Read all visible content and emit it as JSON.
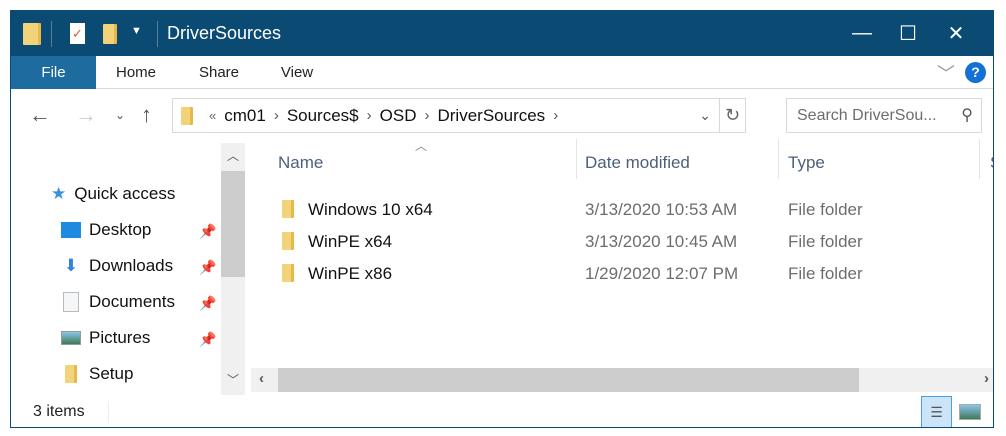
{
  "window": {
    "title": "DriverSources",
    "minimize": "—",
    "maximize": "☐",
    "close": "✕"
  },
  "ribbon": {
    "tabs": [
      "File",
      "Home",
      "Share",
      "View"
    ],
    "expand": "﹀",
    "help": "?"
  },
  "address": {
    "overflow": "«",
    "crumbs": [
      "cm01",
      "Sources$",
      "OSD",
      "DriverSources"
    ],
    "search_placeholder": "Search DriverSou..."
  },
  "navpane": {
    "items": [
      {
        "label": "Quick access",
        "icon": "star-icon",
        "pinned": false
      },
      {
        "label": "Desktop",
        "icon": "desktop-icon",
        "pinned": true
      },
      {
        "label": "Downloads",
        "icon": "download-icon",
        "pinned": true
      },
      {
        "label": "Documents",
        "icon": "documents-icon",
        "pinned": true
      },
      {
        "label": "Pictures",
        "icon": "pictures-icon",
        "pinned": true
      },
      {
        "label": "Setup",
        "icon": "folder-icon",
        "pinned": false
      }
    ]
  },
  "columns": {
    "name": "Name",
    "date": "Date modified",
    "type": "Type",
    "size": "S"
  },
  "files": [
    {
      "name": "Windows 10 x64",
      "date": "3/13/2020 10:53 AM",
      "type": "File folder"
    },
    {
      "name": "WinPE x64",
      "date": "3/13/2020 10:45 AM",
      "type": "File folder"
    },
    {
      "name": "WinPE x86",
      "date": "1/29/2020 12:07 PM",
      "type": "File folder"
    }
  ],
  "status": {
    "count": "3 items"
  },
  "colors": {
    "titlebar": "#0b4a73",
    "file_tab": "#1e6ba0",
    "accent": "#1370d4"
  }
}
